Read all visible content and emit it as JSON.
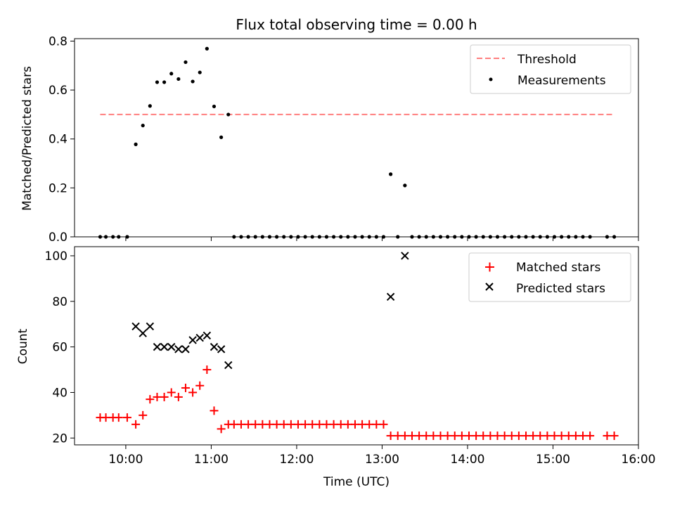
{
  "chart_data": [
    {
      "type": "scatter",
      "title": "Flux total observing time = 0.00 h",
      "xlabel": "",
      "ylabel": "Matched/Predicted stars",
      "xlim": [
        "09:24",
        "16:00"
      ],
      "ylim": [
        0,
        0.81
      ],
      "yticks": [
        "0.0",
        "0.2",
        "0.4",
        "0.6",
        "0.8"
      ],
      "legend_position": "top-right",
      "grid": false,
      "series": [
        {
          "name": "Threshold",
          "kind": "dashed-line",
          "color": "#ff7f7f",
          "points": [
            [
              "09:42",
              0.5
            ],
            [
              "15:43",
              0.5
            ]
          ]
        },
        {
          "name": "Measurements",
          "kind": "dots",
          "color": "#000000",
          "points": [
            [
              "09:42",
              0
            ],
            [
              "09:46",
              0
            ],
            [
              "09:51",
              0
            ],
            [
              "09:55",
              0
            ],
            [
              "10:01",
              0
            ],
            [
              "10:07",
              0.378
            ],
            [
              "10:12",
              0.455
            ],
            [
              "10:17",
              0.535
            ],
            [
              "10:22",
              0.632
            ],
            [
              "10:27",
              0.632
            ],
            [
              "10:32",
              0.667
            ],
            [
              "10:37",
              0.645
            ],
            [
              "10:42",
              0.714
            ],
            [
              "10:47",
              0.635
            ],
            [
              "10:52",
              0.672
            ],
            [
              "10:57",
              0.769
            ],
            [
              "11:02",
              0.533
            ],
            [
              "11:07",
              0.407
            ],
            [
              "11:12",
              0.5
            ],
            [
              "11:16",
              0
            ],
            [
              "11:21",
              0
            ],
            [
              "11:26",
              0
            ],
            [
              "11:31",
              0
            ],
            [
              "11:36",
              0
            ],
            [
              "11:41",
              0
            ],
            [
              "11:46",
              0
            ],
            [
              "11:51",
              0
            ],
            [
              "11:56",
              0
            ],
            [
              "12:01",
              0
            ],
            [
              "12:06",
              0
            ],
            [
              "12:11",
              0
            ],
            [
              "12:16",
              0
            ],
            [
              "12:21",
              0
            ],
            [
              "12:26",
              0
            ],
            [
              "12:31",
              0
            ],
            [
              "12:36",
              0
            ],
            [
              "12:41",
              0
            ],
            [
              "12:46",
              0
            ],
            [
              "12:51",
              0
            ],
            [
              "12:56",
              0
            ],
            [
              "13:01",
              0
            ],
            [
              "13:06",
              0.256
            ],
            [
              "13:11",
              0
            ],
            [
              "13:16",
              0.21
            ],
            [
              "13:21",
              0
            ],
            [
              "13:26",
              0
            ],
            [
              "13:31",
              0
            ],
            [
              "13:36",
              0
            ],
            [
              "13:41",
              0
            ],
            [
              "13:46",
              0
            ],
            [
              "13:51",
              0
            ],
            [
              "13:56",
              0
            ],
            [
              "14:01",
              0
            ],
            [
              "14:06",
              0
            ],
            [
              "14:11",
              0
            ],
            [
              "14:16",
              0
            ],
            [
              "14:21",
              0
            ],
            [
              "14:26",
              0
            ],
            [
              "14:31",
              0
            ],
            [
              "14:36",
              0
            ],
            [
              "14:41",
              0
            ],
            [
              "14:46",
              0
            ],
            [
              "14:51",
              0
            ],
            [
              "14:56",
              0
            ],
            [
              "15:01",
              0
            ],
            [
              "15:06",
              0
            ],
            [
              "15:11",
              0
            ],
            [
              "15:16",
              0
            ],
            [
              "15:21",
              0
            ],
            [
              "15:26",
              0
            ],
            [
              "15:38",
              0
            ],
            [
              "15:43",
              0
            ]
          ]
        }
      ]
    },
    {
      "type": "scatter",
      "title": "",
      "xlabel": "Time (UTC)",
      "ylabel": "Count",
      "xlim": [
        "09:24",
        "16:00"
      ],
      "ylim": [
        17,
        104
      ],
      "yticks": [
        "20",
        "40",
        "60",
        "80",
        "100"
      ],
      "xticks": [
        "10:00",
        "11:00",
        "12:00",
        "13:00",
        "14:00",
        "15:00",
        "16:00"
      ],
      "legend_position": "top-right",
      "grid": false,
      "series": [
        {
          "name": "Matched stars",
          "kind": "plus",
          "color": "#ff0000",
          "points": [
            [
              "09:42",
              29
            ],
            [
              "09:46",
              29
            ],
            [
              "09:51",
              29
            ],
            [
              "09:55",
              29
            ],
            [
              "10:01",
              29
            ],
            [
              "10:07",
              26
            ],
            [
              "10:12",
              30
            ],
            [
              "10:17",
              37
            ],
            [
              "10:22",
              38
            ],
            [
              "10:27",
              38
            ],
            [
              "10:32",
              40
            ],
            [
              "10:37",
              38
            ],
            [
              "10:42",
              42
            ],
            [
              "10:47",
              40
            ],
            [
              "10:52",
              43
            ],
            [
              "10:57",
              50
            ],
            [
              "11:02",
              32
            ],
            [
              "11:07",
              24
            ],
            [
              "11:12",
              26
            ],
            [
              "11:16",
              26
            ],
            [
              "11:21",
              26
            ],
            [
              "11:26",
              26
            ],
            [
              "11:31",
              26
            ],
            [
              "11:36",
              26
            ],
            [
              "11:41",
              26
            ],
            [
              "11:46",
              26
            ],
            [
              "11:51",
              26
            ],
            [
              "11:56",
              26
            ],
            [
              "12:01",
              26
            ],
            [
              "12:06",
              26
            ],
            [
              "12:11",
              26
            ],
            [
              "12:16",
              26
            ],
            [
              "12:21",
              26
            ],
            [
              "12:26",
              26
            ],
            [
              "12:31",
              26
            ],
            [
              "12:36",
              26
            ],
            [
              "12:41",
              26
            ],
            [
              "12:46",
              26
            ],
            [
              "12:51",
              26
            ],
            [
              "12:56",
              26
            ],
            [
              "13:01",
              26
            ],
            [
              "13:06",
              21
            ],
            [
              "13:11",
              21
            ],
            [
              "13:16",
              21
            ],
            [
              "13:21",
              21
            ],
            [
              "13:26",
              21
            ],
            [
              "13:31",
              21
            ],
            [
              "13:36",
              21
            ],
            [
              "13:41",
              21
            ],
            [
              "13:46",
              21
            ],
            [
              "13:51",
              21
            ],
            [
              "13:56",
              21
            ],
            [
              "14:01",
              21
            ],
            [
              "14:06",
              21
            ],
            [
              "14:11",
              21
            ],
            [
              "14:16",
              21
            ],
            [
              "14:21",
              21
            ],
            [
              "14:26",
              21
            ],
            [
              "14:31",
              21
            ],
            [
              "14:36",
              21
            ],
            [
              "14:41",
              21
            ],
            [
              "14:46",
              21
            ],
            [
              "14:51",
              21
            ],
            [
              "14:56",
              21
            ],
            [
              "15:01",
              21
            ],
            [
              "15:06",
              21
            ],
            [
              "15:11",
              21
            ],
            [
              "15:16",
              21
            ],
            [
              "15:21",
              21
            ],
            [
              "15:26",
              21
            ],
            [
              "15:38",
              21
            ],
            [
              "15:43",
              21
            ]
          ]
        },
        {
          "name": "Predicted stars",
          "kind": "cross",
          "color": "#000000",
          "points": [
            [
              "10:07",
              69
            ],
            [
              "10:12",
              66
            ],
            [
              "10:17",
              69
            ],
            [
              "10:22",
              60
            ],
            [
              "10:27",
              60
            ],
            [
              "10:32",
              60
            ],
            [
              "10:37",
              59
            ],
            [
              "10:42",
              59
            ],
            [
              "10:47",
              63
            ],
            [
              "10:52",
              64
            ],
            [
              "10:57",
              65
            ],
            [
              "11:02",
              60
            ],
            [
              "11:07",
              59
            ],
            [
              "11:12",
              52
            ],
            [
              "13:06",
              82
            ],
            [
              "13:16",
              100
            ]
          ]
        }
      ]
    }
  ]
}
